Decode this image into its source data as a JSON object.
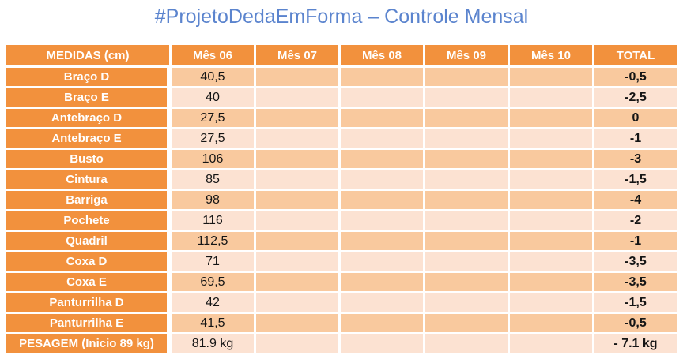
{
  "title": "#ProjetoDedaEmForma – Controle Mensal",
  "colors": {
    "accent_orange": "#F2913D",
    "row_odd_fill": "#F9C99E",
    "row_even_fill": "#FCE2D2",
    "title_blue": "#5B84CE",
    "value_text": "#151515"
  },
  "table": {
    "headers": [
      "MEDIDAS (cm)",
      "Mês 06",
      "Mês 07",
      "Mês 08",
      "Mês 09",
      "Mês 10",
      "TOTAL"
    ],
    "rows": [
      {
        "label": "Braço D",
        "values": [
          "40,5",
          "",
          "",
          "",
          ""
        ],
        "total": "-0,5"
      },
      {
        "label": "Braço E",
        "values": [
          "40",
          "",
          "",
          "",
          ""
        ],
        "total": "-2,5"
      },
      {
        "label": "Antebraço D",
        "values": [
          "27,5",
          "",
          "",
          "",
          ""
        ],
        "total": "0"
      },
      {
        "label": "Antebraço E",
        "values": [
          "27,5",
          "",
          "",
          "",
          ""
        ],
        "total": "-1"
      },
      {
        "label": "Busto",
        "values": [
          "106",
          "",
          "",
          "",
          ""
        ],
        "total": "-3"
      },
      {
        "label": "Cintura",
        "values": [
          "85",
          "",
          "",
          "",
          ""
        ],
        "total": "-1,5"
      },
      {
        "label": "Barriga",
        "values": [
          "98",
          "",
          "",
          "",
          ""
        ],
        "total": "-4"
      },
      {
        "label": "Pochete",
        "values": [
          "116",
          "",
          "",
          "",
          ""
        ],
        "total": "-2"
      },
      {
        "label": "Quadril",
        "values": [
          "112,5",
          "",
          "",
          "",
          ""
        ],
        "total": "-1"
      },
      {
        "label": "Coxa D",
        "values": [
          "71",
          "",
          "",
          "",
          ""
        ],
        "total": "-3,5"
      },
      {
        "label": "Coxa E",
        "values": [
          "69,5",
          "",
          "",
          "",
          ""
        ],
        "total": "-3,5"
      },
      {
        "label": "Panturrilha D",
        "values": [
          "42",
          "",
          "",
          "",
          ""
        ],
        "total": "-1,5"
      },
      {
        "label": "Panturrilha E",
        "values": [
          "41,5",
          "",
          "",
          "",
          ""
        ],
        "total": "-0,5"
      },
      {
        "label": "PESAGEM (Inicio 89 kg)",
        "values": [
          "81.9 kg",
          "",
          "",
          "",
          ""
        ],
        "total": "- 7.1 kg"
      }
    ]
  }
}
